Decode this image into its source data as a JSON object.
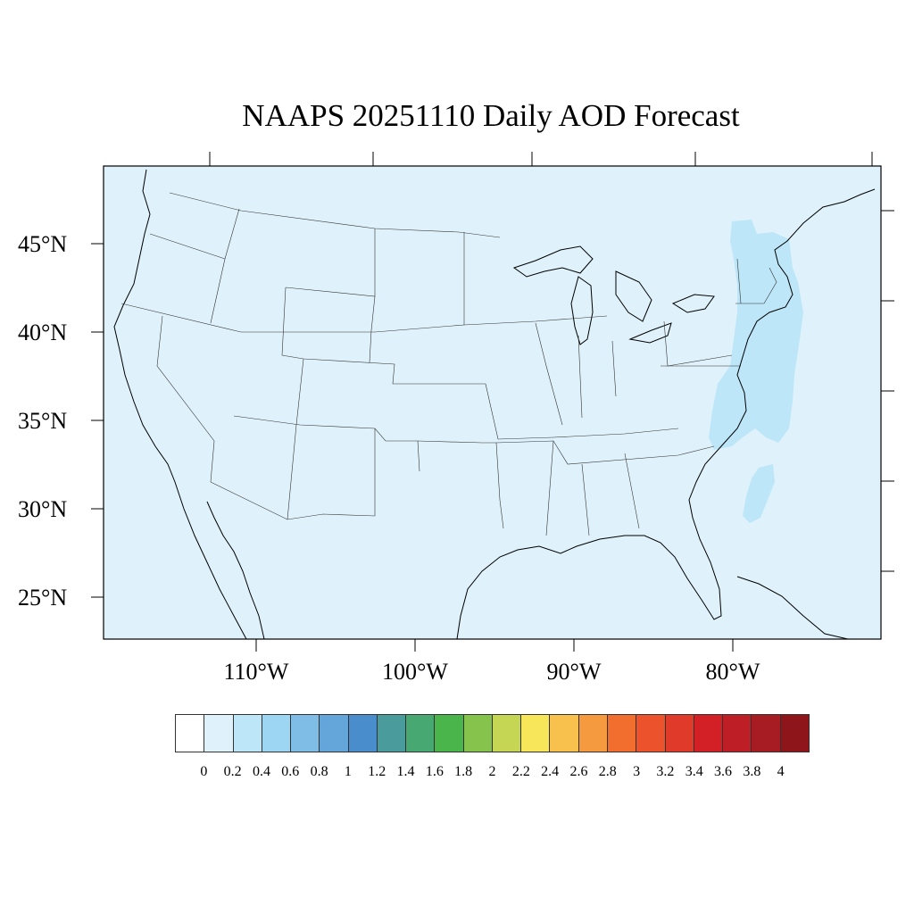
{
  "title": "NAAPS 20251110 Daily AOD Forecast",
  "lat_labels": [
    "45°N",
    "40°N",
    "35°N",
    "30°N",
    "25°N"
  ],
  "lon_labels": [
    "110°W",
    "100°W",
    "90°W",
    "80°W"
  ],
  "colorbar": {
    "colors": [
      "#ffffff",
      "#dff2fb",
      "#bde6f8",
      "#9dd6f3",
      "#80bde6",
      "#64a6da",
      "#4a8dcc",
      "#4a9c9c",
      "#48a871",
      "#4ab54a",
      "#86c34c",
      "#c4d654",
      "#f7e55a",
      "#f8c04c",
      "#f59a3e",
      "#f26e2e",
      "#ec522c",
      "#e03a2a",
      "#d32027",
      "#be1f26",
      "#a71c22",
      "#8e161b"
    ],
    "labels": [
      "0",
      "0.2",
      "0.4",
      "0.6",
      "0.8",
      "1",
      "1.2",
      "1.4",
      "1.6",
      "1.8",
      "2",
      "2.2",
      "2.4",
      "2.6",
      "2.8",
      "3",
      "3.2",
      "3.4",
      "3.6",
      "3.8",
      "4"
    ]
  },
  "map": {
    "background_color": "#dff2fb",
    "plume_color": "#bde6f8",
    "plume_aod": "0.2-0.4",
    "base_aod": "0-0.2"
  }
}
